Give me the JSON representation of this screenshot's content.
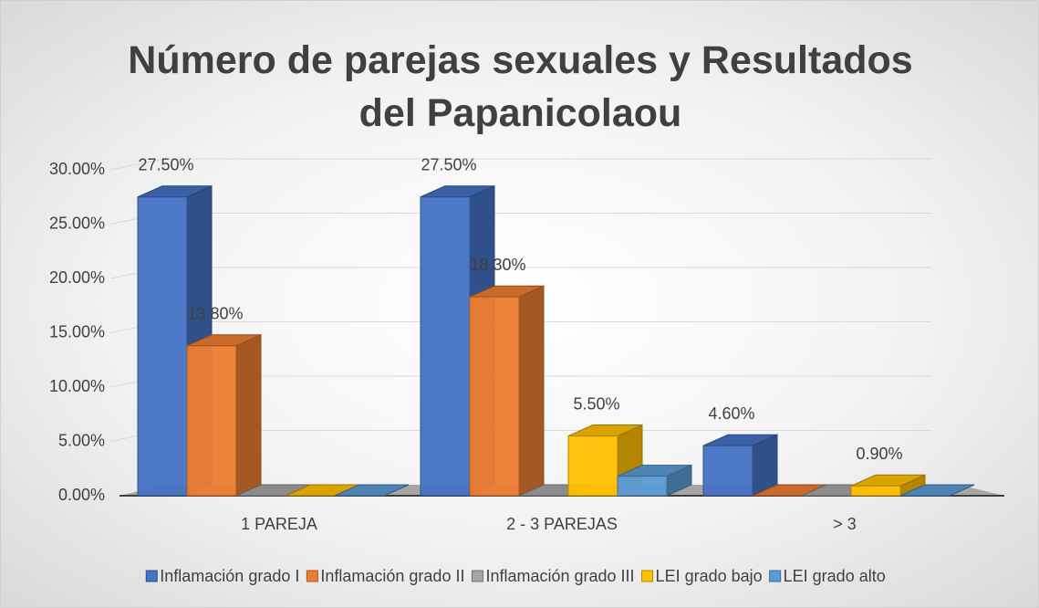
{
  "chart_data": {
    "type": "bar3d",
    "title": "Número de parejas sexuales y Resultados del Papanicolaou",
    "categories": [
      "1 PAREJA",
      "2 - 3 PAREJAS",
      "> 3"
    ],
    "series": [
      {
        "name": "Inflamación grado I",
        "color": "#4472c4",
        "values": [
          27.5,
          27.5,
          4.6
        ],
        "value_labels": [
          "27.50%",
          "27.50%",
          "4.60%"
        ]
      },
      {
        "name": "Inflamación grado II",
        "color": "#ed7d31",
        "values": [
          13.8,
          18.3,
          0
        ],
        "value_labels": [
          "13.80%",
          "18.30%",
          null
        ]
      },
      {
        "name": "Inflamación grado III",
        "color": "#a5a5a5",
        "values": [
          0,
          0,
          0
        ],
        "value_labels": [
          null,
          null,
          null
        ]
      },
      {
        "name": "LEI grado bajo",
        "color": "#ffc000",
        "values": [
          0,
          5.5,
          0.9
        ],
        "value_labels": [
          null,
          "5.50%",
          "0.90%"
        ]
      },
      {
        "name": "LEI grado alto",
        "color": "#5b9bd5",
        "values": [
          0,
          1.8,
          0
        ],
        "value_labels": [
          null,
          null,
          null
        ]
      }
    ],
    "ylim": [
      0,
      30
    ],
    "yticks": [
      {
        "value": 0,
        "label": "0.00%"
      },
      {
        "value": 5,
        "label": "5.00%"
      },
      {
        "value": 10,
        "label": "10.00%"
      },
      {
        "value": 15,
        "label": "15.00%"
      },
      {
        "value": 20,
        "label": "20.00%"
      },
      {
        "value": 25,
        "label": "25.00%"
      },
      {
        "value": 30,
        "label": "30.00%"
      }
    ],
    "grid": true,
    "legend": "bottom"
  }
}
